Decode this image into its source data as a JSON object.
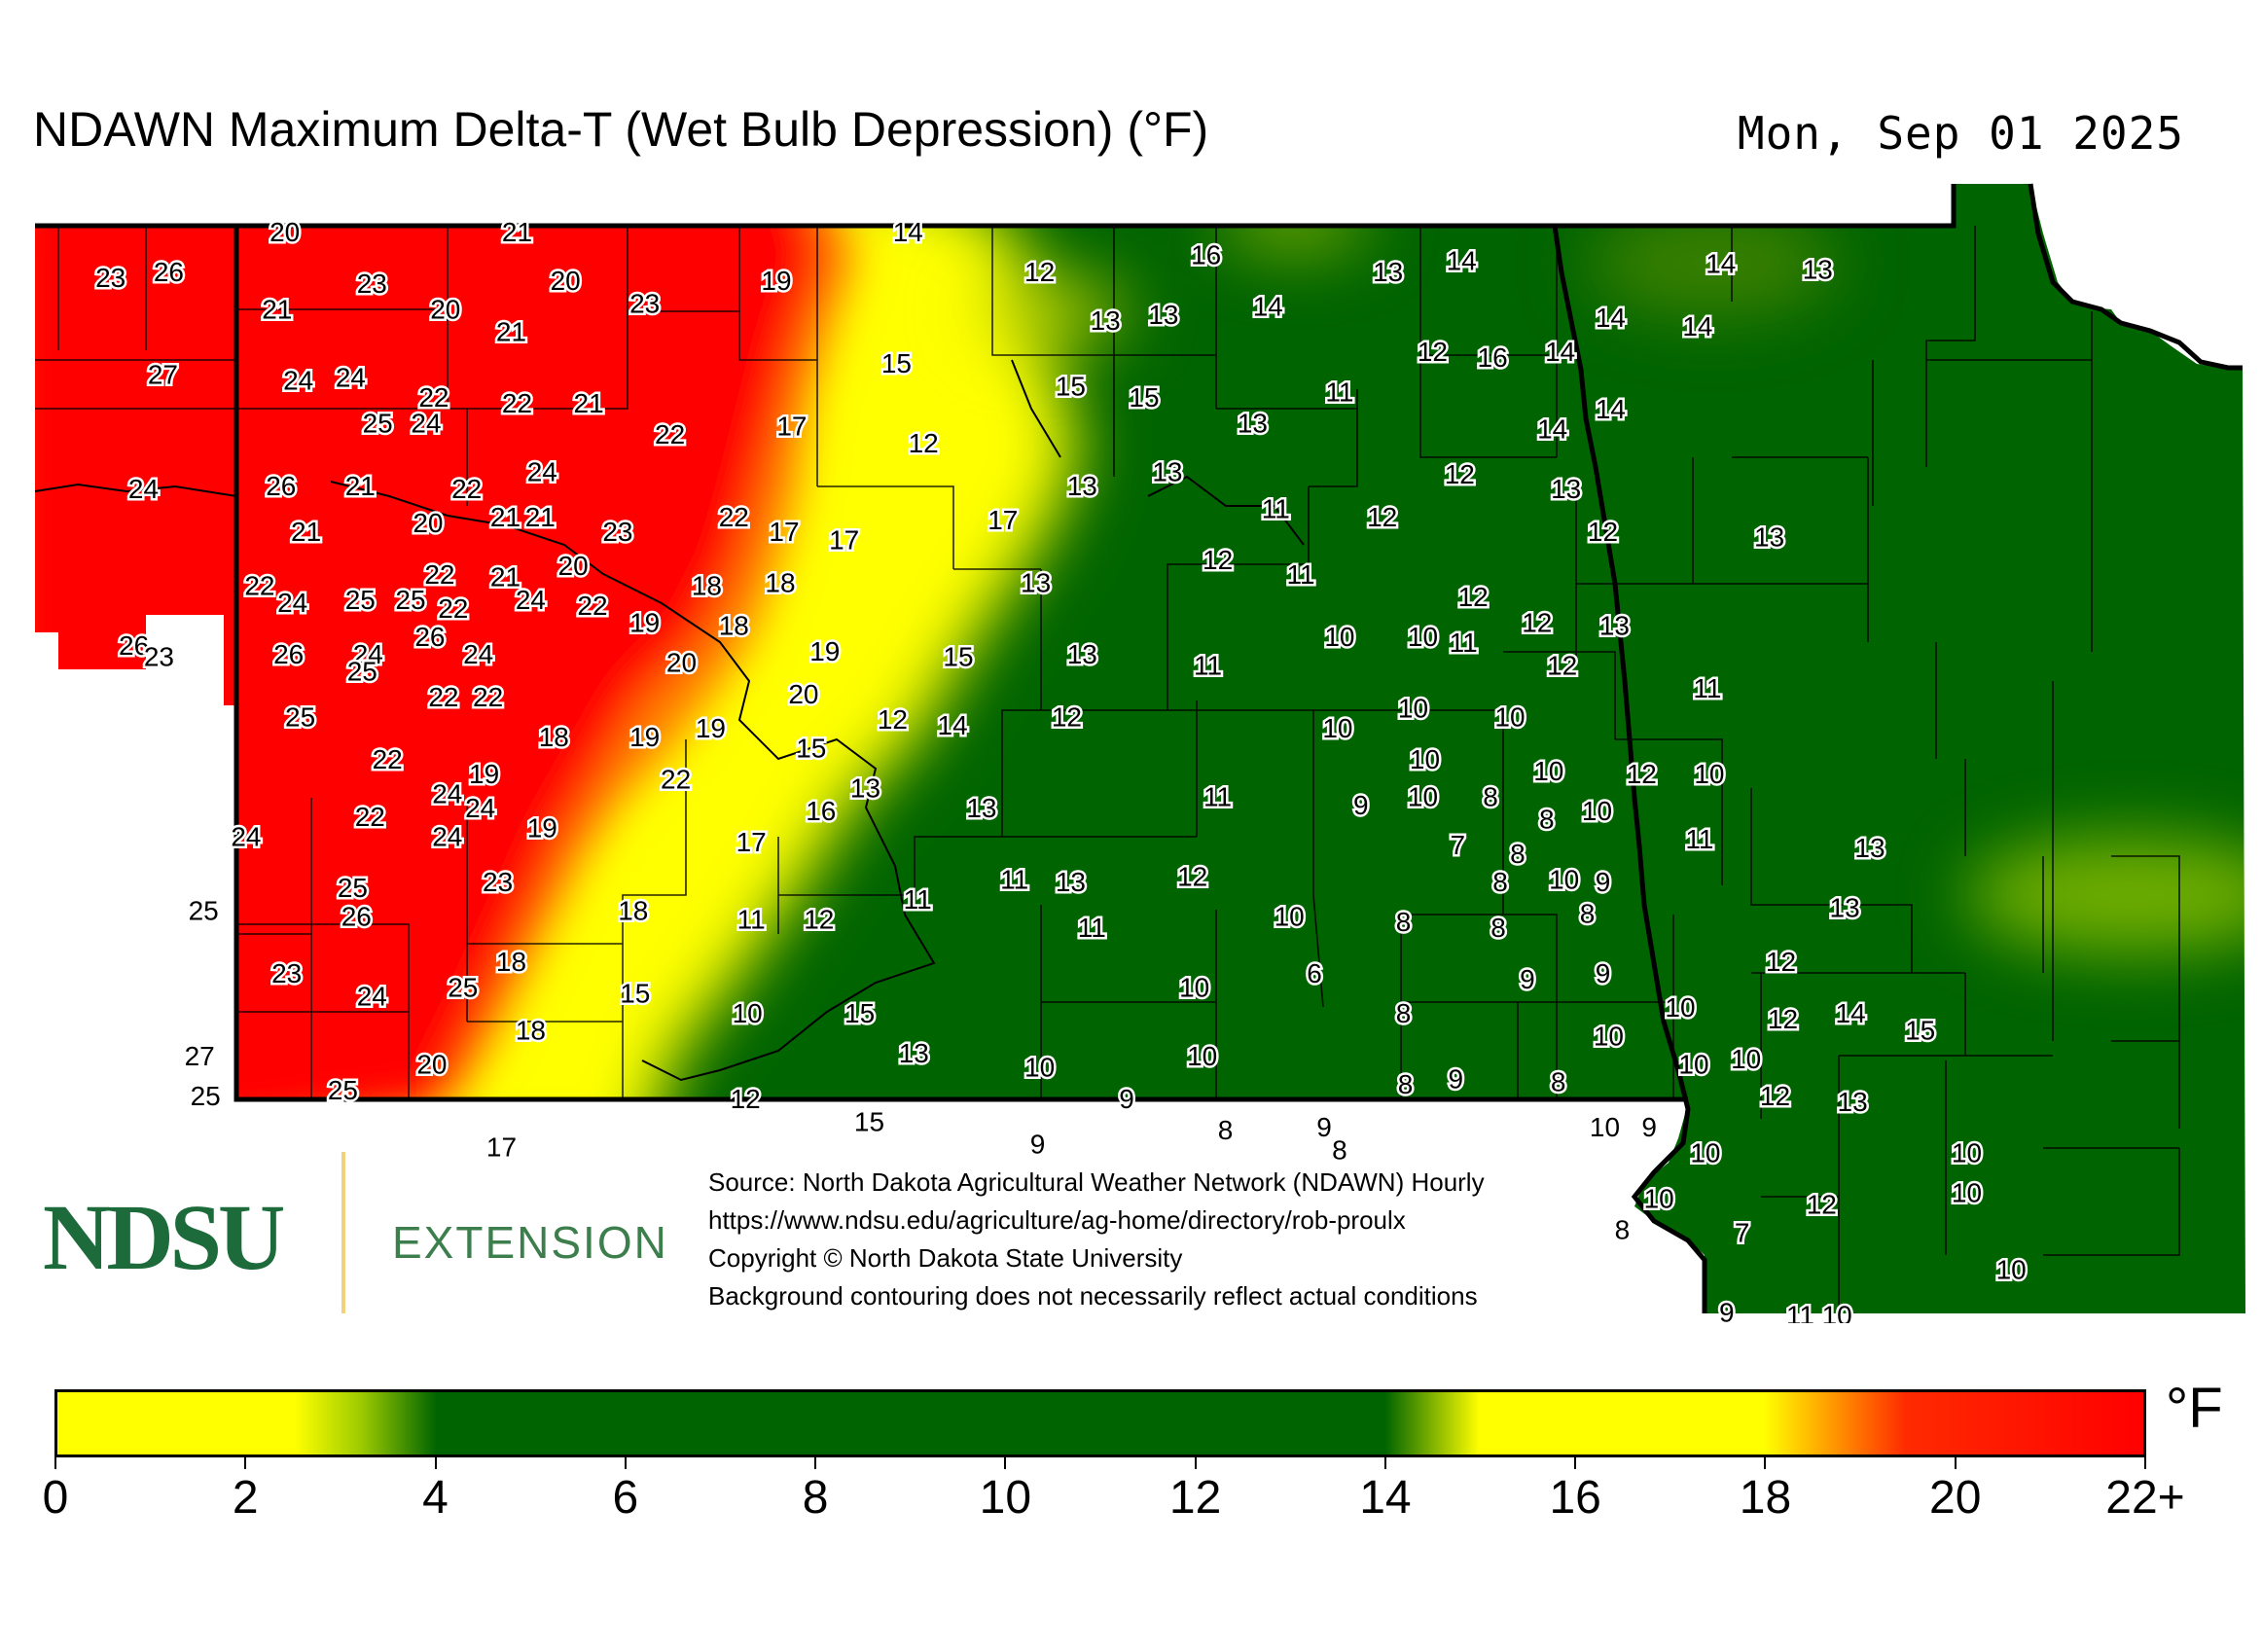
{
  "header": {
    "title": "NDAWN Maximum Delta-T (Wet Bulb Depression) (°F)",
    "date": "Mon, Sep 01 2025"
  },
  "logo": {
    "wordmark": "NDSU",
    "division": "EXTENSION"
  },
  "source": {
    "line1": "Source: North Dakota Agricultural Weather Network (NDAWN) Hourly",
    "line2": "https://www.ndsu.edu/agriculture/ag-home/directory/rob-proulx",
    "line3": "Copyright © North Dakota State University",
    "line4": "Background contouring does not necessarily reflect actual conditions"
  },
  "colorbar": {
    "unit": "°F",
    "ticks": [
      "0",
      "2",
      "4",
      "6",
      "8",
      "10",
      "12",
      "14",
      "16",
      "18",
      "20",
      "22+"
    ],
    "stops": [
      {
        "value": 0,
        "color": "#ffff00"
      },
      {
        "value": 2.5,
        "color": "#ffff00"
      },
      {
        "value": 3.2,
        "color": "#9dcb00"
      },
      {
        "value": 4,
        "color": "#006400"
      },
      {
        "value": 14,
        "color": "#006400"
      },
      {
        "value": 15,
        "color": "#ffff00"
      },
      {
        "value": 18,
        "color": "#ffff00"
      },
      {
        "value": 19.5,
        "color": "#ff2a00"
      },
      {
        "value": 22,
        "color": "#ff0000"
      }
    ]
  },
  "colors": {
    "red": "#ff0000",
    "yellow": "#ffff00",
    "green": "#006400",
    "orange": "#ff8c00"
  },
  "map_stations": [
    {
      "v": "20",
      "lon": -103.8,
      "lat": 48.97
    },
    {
      "v": "21",
      "lon": -102.6,
      "lat": 48.97
    },
    {
      "v": "14",
      "lon": -100.58,
      "lat": 48.97
    },
    {
      "v": "23",
      "lon": -104.7,
      "lat": 48.81
    },
    {
      "v": "26",
      "lon": -104.4,
      "lat": 48.83
    },
    {
      "v": "23",
      "lon": -103.35,
      "lat": 48.79
    },
    {
      "v": "20",
      "lon": -102.35,
      "lat": 48.8
    },
    {
      "v": "23",
      "lon": -101.94,
      "lat": 48.72
    },
    {
      "v": "19",
      "lon": -101.26,
      "lat": 48.8
    },
    {
      "v": "12",
      "lon": -99.9,
      "lat": 48.83
    },
    {
      "v": "16",
      "lon": -99.04,
      "lat": 48.89
    },
    {
      "v": "13",
      "lon": -98.1,
      "lat": 48.83
    },
    {
      "v": "14",
      "lon": -97.72,
      "lat": 48.87
    },
    {
      "v": "14",
      "lon": -96.38,
      "lat": 48.86
    },
    {
      "v": "13",
      "lon": -95.88,
      "lat": 48.84
    },
    {
      "v": "21",
      "lon": -103.84,
      "lat": 48.7
    },
    {
      "v": "20",
      "lon": -102.97,
      "lat": 48.7
    },
    {
      "v": "21",
      "lon": -102.63,
      "lat": 48.62
    },
    {
      "v": "13",
      "lon": -99.56,
      "lat": 48.66
    },
    {
      "v": "13",
      "lon": -99.26,
      "lat": 48.68
    },
    {
      "v": "14",
      "lon": -98.72,
      "lat": 48.71
    },
    {
      "v": "14",
      "lon": -96.95,
      "lat": 48.67
    },
    {
      "v": "14",
      "lon": -96.5,
      "lat": 48.64
    },
    {
      "v": "27",
      "lon": -104.43,
      "lat": 48.47
    },
    {
      "v": "24",
      "lon": -103.73,
      "lat": 48.45
    },
    {
      "v": "24",
      "lon": -103.46,
      "lat": 48.46
    },
    {
      "v": "22",
      "lon": -103.03,
      "lat": 48.39
    },
    {
      "v": "22",
      "lon": -102.6,
      "lat": 48.37
    },
    {
      "v": "21",
      "lon": -102.23,
      "lat": 48.37
    },
    {
      "v": "15",
      "lon": -100.64,
      "lat": 48.51
    },
    {
      "v": "15",
      "lon": -99.74,
      "lat": 48.43
    },
    {
      "v": "15",
      "lon": -99.36,
      "lat": 48.39
    },
    {
      "v": "12",
      "lon": -97.87,
      "lat": 48.55
    },
    {
      "v": "16",
      "lon": -97.56,
      "lat": 48.53
    },
    {
      "v": "14",
      "lon": -97.21,
      "lat": 48.55
    },
    {
      "v": "11",
      "lon": -98.35,
      "lat": 48.41
    },
    {
      "v": "14",
      "lon": -97.25,
      "lat": 48.28
    },
    {
      "v": "14",
      "lon": -96.95,
      "lat": 48.35
    },
    {
      "v": "25",
      "lon": -103.32,
      "lat": 48.3
    },
    {
      "v": "24",
      "lon": -103.07,
      "lat": 48.3
    },
    {
      "v": "22",
      "lon": -101.81,
      "lat": 48.26
    },
    {
      "v": "17",
      "lon": -101.18,
      "lat": 48.29
    },
    {
      "v": "12",
      "lon": -100.5,
      "lat": 48.23
    },
    {
      "v": "13",
      "lon": -98.8,
      "lat": 48.3
    },
    {
      "v": "24",
      "lon": -104.53,
      "lat": 48.07
    },
    {
      "v": "26",
      "lon": -103.82,
      "lat": 48.08
    },
    {
      "v": "21",
      "lon": -103.41,
      "lat": 48.08
    },
    {
      "v": "22",
      "lon": -102.86,
      "lat": 48.07
    },
    {
      "v": "24",
      "lon": -102.47,
      "lat": 48.13
    },
    {
      "v": "13",
      "lon": -99.68,
      "lat": 48.08
    },
    {
      "v": "13",
      "lon": -99.24,
      "lat": 48.13
    },
    {
      "v": "12",
      "lon": -97.73,
      "lat": 48.12
    },
    {
      "v": "13",
      "lon": -97.18,
      "lat": 48.07
    },
    {
      "v": "21",
      "lon": -103.69,
      "lat": 47.92
    },
    {
      "v": "20",
      "lon": -103.06,
      "lat": 47.95
    },
    {
      "v": "21",
      "lon": -102.66,
      "lat": 47.97
    },
    {
      "v": "21",
      "lon": -102.48,
      "lat": 47.97
    },
    {
      "v": "23",
      "lon": -102.08,
      "lat": 47.92
    },
    {
      "v": "22",
      "lon": -101.48,
      "lat": 47.97
    },
    {
      "v": "17",
      "lon": -101.22,
      "lat": 47.92
    },
    {
      "v": "17",
      "lon": -100.91,
      "lat": 47.89
    },
    {
      "v": "17",
      "lon": -100.09,
      "lat": 47.96
    },
    {
      "v": "11",
      "lon": -98.68,
      "lat": 48.0
    },
    {
      "v": "12",
      "lon": -98.13,
      "lat": 47.97
    },
    {
      "v": "12",
      "lon": -96.99,
      "lat": 47.92
    },
    {
      "v": "13",
      "lon": -96.13,
      "lat": 47.9
    },
    {
      "v": "20",
      "lon": -102.31,
      "lat": 47.8
    },
    {
      "v": "22",
      "lon": -103.0,
      "lat": 47.77
    },
    {
      "v": "21",
      "lon": -102.66,
      "lat": 47.76
    },
    {
      "v": "22",
      "lon": -103.93,
      "lat": 47.73
    },
    {
      "v": "12",
      "lon": -98.98,
      "lat": 47.82
    },
    {
      "v": "11",
      "lon": -98.55,
      "lat": 47.77
    },
    {
      "v": "18",
      "lon": -101.62,
      "lat": 47.73
    },
    {
      "v": "18",
      "lon": -101.24,
      "lat": 47.74
    },
    {
      "v": "13",
      "lon": -99.92,
      "lat": 47.74
    },
    {
      "v": "24",
      "lon": -103.76,
      "lat": 47.67
    },
    {
      "v": "25",
      "lon": -103.41,
      "lat": 47.68
    },
    {
      "v": "25",
      "lon": -103.15,
      "lat": 47.68
    },
    {
      "v": "22",
      "lon": -102.93,
      "lat": 47.65
    },
    {
      "v": "24",
      "lon": -102.53,
      "lat": 47.68
    },
    {
      "v": "22",
      "lon": -102.21,
      "lat": 47.66
    },
    {
      "v": "12",
      "lon": -97.66,
      "lat": 47.69
    },
    {
      "v": "18",
      "lon": -101.48,
      "lat": 47.59
    },
    {
      "v": "19",
      "lon": -101.94,
      "lat": 47.6
    },
    {
      "v": "12",
      "lon": -97.33,
      "lat": 47.6
    },
    {
      "v": "13",
      "lon": -96.93,
      "lat": 47.59
    },
    {
      "v": "26",
      "lon": -103.05,
      "lat": 47.55
    },
    {
      "v": "26",
      "lon": -104.58,
      "lat": 47.52
    },
    {
      "v": "23",
      "lon": -104.45,
      "lat": 47.48
    },
    {
      "v": "26",
      "lon": -103.78,
      "lat": 47.49
    },
    {
      "v": "24",
      "lon": -103.37,
      "lat": 47.49
    },
    {
      "v": "25",
      "lon": -103.4,
      "lat": 47.43
    },
    {
      "v": "24",
      "lon": -102.8,
      "lat": 47.49
    },
    {
      "v": "10",
      "lon": -98.35,
      "lat": 47.55
    },
    {
      "v": "10",
      "lon": -97.92,
      "lat": 47.55
    },
    {
      "v": "11",
      "lon": -97.71,
      "lat": 47.53
    },
    {
      "v": "19",
      "lon": -101.01,
      "lat": 47.5
    },
    {
      "v": "15",
      "lon": -100.32,
      "lat": 47.48
    },
    {
      "v": "20",
      "lon": -101.75,
      "lat": 47.46
    },
    {
      "v": "13",
      "lon": -99.68,
      "lat": 47.49
    },
    {
      "v": "11",
      "lon": -99.03,
      "lat": 47.45
    },
    {
      "v": "12",
      "lon": -97.2,
      "lat": 47.45
    },
    {
      "v": "22",
      "lon": -102.98,
      "lat": 47.34
    },
    {
      "v": "22",
      "lon": -102.75,
      "lat": 47.34
    },
    {
      "v": "20",
      "lon": -101.12,
      "lat": 47.35
    },
    {
      "v": "11",
      "lon": -96.45,
      "lat": 47.37
    },
    {
      "v": "25",
      "lon": -103.72,
      "lat": 47.27
    },
    {
      "v": "10",
      "lon": -97.97,
      "lat": 47.3
    },
    {
      "v": "10",
      "lon": -97.47,
      "lat": 47.27
    },
    {
      "v": "12",
      "lon": -99.76,
      "lat": 47.27
    },
    {
      "v": "18",
      "lon": -102.41,
      "lat": 47.2
    },
    {
      "v": "19",
      "lon": -101.94,
      "lat": 47.2
    },
    {
      "v": "19",
      "lon": -101.6,
      "lat": 47.23
    },
    {
      "v": "12",
      "lon": -100.66,
      "lat": 47.26
    },
    {
      "v": "14",
      "lon": -100.35,
      "lat": 47.24
    },
    {
      "v": "10",
      "lon": -98.36,
      "lat": 47.23
    },
    {
      "v": "22",
      "lon": -103.27,
      "lat": 47.12
    },
    {
      "v": "15",
      "lon": -101.08,
      "lat": 47.16
    },
    {
      "v": "10",
      "lon": -97.91,
      "lat": 47.12
    },
    {
      "v": "19",
      "lon": -102.77,
      "lat": 47.07
    },
    {
      "v": "22",
      "lon": -101.78,
      "lat": 47.05
    },
    {
      "v": "10",
      "lon": -97.27,
      "lat": 47.08
    },
    {
      "v": "12",
      "lon": -96.79,
      "lat": 47.07
    },
    {
      "v": "10",
      "lon": -96.44,
      "lat": 47.07
    },
    {
      "v": "13",
      "lon": -100.8,
      "lat": 47.02
    },
    {
      "v": "24",
      "lon": -102.96,
      "lat": 47.0
    },
    {
      "v": "24",
      "lon": -102.79,
      "lat": 46.95
    },
    {
      "v": "22",
      "lon": -103.36,
      "lat": 46.92
    },
    {
      "v": "13",
      "lon": -100.2,
      "lat": 46.95
    },
    {
      "v": "11",
      "lon": -98.98,
      "lat": 46.99
    },
    {
      "v": "9",
      "lon": -98.24,
      "lat": 46.96
    },
    {
      "v": "10",
      "lon": -97.92,
      "lat": 46.99
    },
    {
      "v": "8",
      "lon": -97.57,
      "lat": 46.99
    },
    {
      "v": "10",
      "lon": -97.02,
      "lat": 46.94
    },
    {
      "v": "16",
      "lon": -101.03,
      "lat": 46.94
    },
    {
      "v": "8",
      "lon": -97.28,
      "lat": 46.91
    },
    {
      "v": "24",
      "lon": -104.0,
      "lat": 46.85
    },
    {
      "v": "19",
      "lon": -102.47,
      "lat": 46.88
    },
    {
      "v": "24",
      "lon": -102.96,
      "lat": 46.85
    },
    {
      "v": "17",
      "lon": -101.39,
      "lat": 46.83
    },
    {
      "v": "7",
      "lon": -97.74,
      "lat": 46.82
    },
    {
      "v": "8",
      "lon": -97.43,
      "lat": 46.79
    },
    {
      "v": "11",
      "lon": -96.49,
      "lat": 46.84
    },
    {
      "v": "13",
      "lon": -95.61,
      "lat": 46.81
    },
    {
      "v": "23",
      "lon": -102.7,
      "lat": 46.69
    },
    {
      "v": "11",
      "lon": -100.03,
      "lat": 46.7
    },
    {
      "v": "13",
      "lon": -99.74,
      "lat": 46.69
    },
    {
      "v": "12",
      "lon": -99.11,
      "lat": 46.71
    },
    {
      "v": "8",
      "lon": -97.52,
      "lat": 46.69
    },
    {
      "v": "10",
      "lon": -97.19,
      "lat": 46.7
    },
    {
      "v": "9",
      "lon": -96.99,
      "lat": 46.69
    },
    {
      "v": "25",
      "lon": -103.45,
      "lat": 46.67
    },
    {
      "v": "11",
      "lon": -100.53,
      "lat": 46.63
    },
    {
      "v": "25",
      "lon": -104.22,
      "lat": 46.59
    },
    {
      "v": "26",
      "lon": -103.43,
      "lat": 46.57
    },
    {
      "v": "18",
      "lon": -102.0,
      "lat": 46.59
    },
    {
      "v": "11",
      "lon": -101.39,
      "lat": 46.56
    },
    {
      "v": "12",
      "lon": -101.04,
      "lat": 46.56
    },
    {
      "v": "10",
      "lon": -98.61,
      "lat": 46.57
    },
    {
      "v": "8",
      "lon": -98.02,
      "lat": 46.55
    },
    {
      "v": "8",
      "lon": -97.53,
      "lat": 46.53
    },
    {
      "v": "8",
      "lon": -97.07,
      "lat": 46.58
    },
    {
      "v": "13",
      "lon": -95.74,
      "lat": 46.6
    },
    {
      "v": "11",
      "lon": -99.63,
      "lat": 46.53
    },
    {
      "v": "18",
      "lon": -102.63,
      "lat": 46.41
    },
    {
      "v": "23",
      "lon": -103.79,
      "lat": 46.37
    },
    {
      "v": "25",
      "lon": -102.88,
      "lat": 46.32
    },
    {
      "v": "24",
      "lon": -103.35,
      "lat": 46.29
    },
    {
      "v": "15",
      "lon": -101.99,
      "lat": 46.3
    },
    {
      "v": "6",
      "lon": -98.48,
      "lat": 46.37
    },
    {
      "v": "10",
      "lon": -99.1,
      "lat": 46.32
    },
    {
      "v": "9",
      "lon": -97.38,
      "lat": 46.35
    },
    {
      "v": "9",
      "lon": -96.99,
      "lat": 46.37
    },
    {
      "v": "12",
      "lon": -96.07,
      "lat": 46.41
    },
    {
      "v": "10",
      "lon": -101.41,
      "lat": 46.23
    },
    {
      "v": "15",
      "lon": -100.83,
      "lat": 46.23
    },
    {
      "v": "8",
      "lon": -98.02,
      "lat": 46.23
    },
    {
      "v": "10",
      "lon": -96.59,
      "lat": 46.25
    },
    {
      "v": "12",
      "lon": -96.06,
      "lat": 46.21
    },
    {
      "v": "14",
      "lon": -95.71,
      "lat": 46.23
    },
    {
      "v": "18",
      "lon": -102.53,
      "lat": 46.17
    },
    {
      "v": "15",
      "lon": -95.35,
      "lat": 46.17
    },
    {
      "v": "13",
      "lon": -100.55,
      "lat": 46.09
    },
    {
      "v": "27",
      "lon": -104.24,
      "lat": 46.08
    },
    {
      "v": "10",
      "lon": -99.06,
      "lat": 46.08
    },
    {
      "v": "10",
      "lon": -96.96,
      "lat": 46.15
    },
    {
      "v": "10",
      "lon": -96.52,
      "lat": 46.05
    },
    {
      "v": "10",
      "lon": -96.25,
      "lat": 46.07
    },
    {
      "v": "20",
      "lon": -103.04,
      "lat": 46.05
    },
    {
      "v": "10",
      "lon": -99.9,
      "lat": 46.04
    },
    {
      "v": "8",
      "lon": -98.01,
      "lat": 45.98
    },
    {
      "v": "9",
      "lon": -97.75,
      "lat": 46.0
    },
    {
      "v": "8",
      "lon": -97.22,
      "lat": 45.99
    },
    {
      "v": "25",
      "lon": -104.21,
      "lat": 45.94
    },
    {
      "v": "25",
      "lon": -103.5,
      "lat": 45.96
    },
    {
      "v": "12",
      "lon": -101.42,
      "lat": 45.93
    },
    {
      "v": "9",
      "lon": -99.45,
      "lat": 45.93
    },
    {
      "v": "12",
      "lon": -96.1,
      "lat": 45.94
    },
    {
      "v": "13",
      "lon": -95.7,
      "lat": 45.92
    },
    {
      "v": "15",
      "lon": -100.78,
      "lat": 45.85
    },
    {
      "v": "8",
      "lon": -98.94,
      "lat": 45.82
    },
    {
      "v": "9",
      "lon": -98.43,
      "lat": 45.83
    },
    {
      "v": "10",
      "lon": -96.98,
      "lat": 45.83
    },
    {
      "v": "9",
      "lon": -96.75,
      "lat": 45.83
    },
    {
      "v": "17",
      "lon": -102.68,
      "lat": 45.76
    },
    {
      "v": "9",
      "lon": -99.91,
      "lat": 45.77
    },
    {
      "v": "8",
      "lon": -98.35,
      "lat": 45.75
    },
    {
      "v": "10",
      "lon": -96.46,
      "lat": 45.74
    },
    {
      "v": "10",
      "lon": -95.11,
      "lat": 45.74
    },
    {
      "v": "10",
      "lon": -96.7,
      "lat": 45.58
    },
    {
      "v": "10",
      "lon": -95.11,
      "lat": 45.6
    },
    {
      "v": "12",
      "lon": -95.86,
      "lat": 45.56
    },
    {
      "v": "8",
      "lon": -96.89,
      "lat": 45.47
    },
    {
      "v": "7",
      "lon": -96.27,
      "lat": 45.46
    },
    {
      "v": "10",
      "lon": -94.88,
      "lat": 45.33
    },
    {
      "v": "9",
      "lon": -96.35,
      "lat": 45.18
    },
    {
      "v": "11",
      "lon": -95.97,
      "lat": 45.17
    },
    {
      "v": "10",
      "lon": -95.78,
      "lat": 45.17
    }
  ]
}
